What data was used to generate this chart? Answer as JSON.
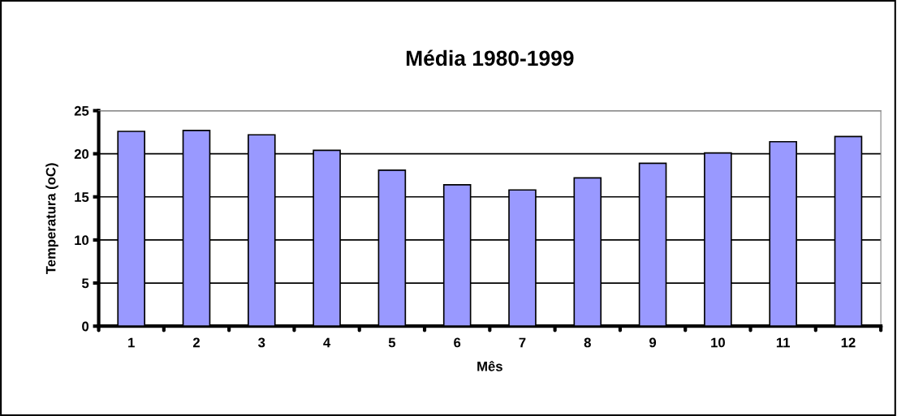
{
  "chart_data": {
    "type": "bar",
    "title": "Média 1980-1999",
    "xlabel": "Mês",
    "ylabel": "Temperatura (oC)",
    "categories": [
      "1",
      "2",
      "3",
      "4",
      "5",
      "6",
      "7",
      "8",
      "9",
      "10",
      "11",
      "12"
    ],
    "values": [
      22.6,
      22.7,
      22.2,
      20.4,
      18.1,
      16.4,
      15.8,
      17.2,
      18.9,
      20.1,
      21.4,
      22.0
    ],
    "color": "#9999ff",
    "ylim": [
      0,
      25
    ],
    "yticks": [
      0,
      5,
      10,
      15,
      20,
      25
    ],
    "grid": "y"
  }
}
